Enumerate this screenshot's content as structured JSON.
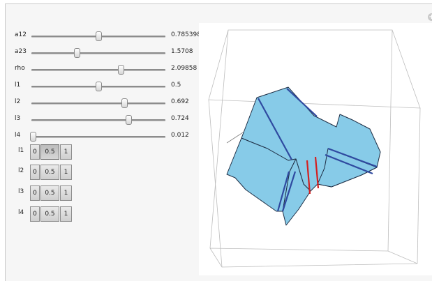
{
  "sliders": [
    {
      "label": "a12",
      "value": "0.785398",
      "fraction": 0.5
    },
    {
      "label": "a23",
      "value": "1.5708",
      "fraction": 0.34
    },
    {
      "label": "rho",
      "value": "2.09858",
      "fraction": 0.667
    },
    {
      "label": "l1",
      "value": "0.5",
      "fraction": 0.5
    },
    {
      "label": "l2",
      "value": "0.692",
      "fraction": 0.692
    },
    {
      "label": "l3",
      "value": "0.724",
      "fraction": 0.724
    },
    {
      "label": "l4",
      "value": "0.012",
      "fraction": 0.012
    }
  ],
  "setters": [
    {
      "label": "l1",
      "options": [
        "0",
        "0.5",
        "1"
      ],
      "selected": "0.5"
    },
    {
      "label": "l2",
      "options": [
        "0",
        "0.5",
        "1"
      ],
      "selected": null
    },
    {
      "label": "l3",
      "options": [
        "0",
        "0.5",
        "1"
      ],
      "selected": null
    },
    {
      "label": "l4",
      "options": [
        "0",
        "0.5",
        "1"
      ],
      "selected": null
    }
  ],
  "corner_icon": "add-circle-icon",
  "colors": {
    "face_fill": "#87cbe8",
    "face_edge": "#1f2f46",
    "hinge_blue": "#2f4aa0",
    "hinge_red": "#d42020",
    "box_line": "#bdbdbd",
    "wire_line": "#7a7a7a"
  }
}
